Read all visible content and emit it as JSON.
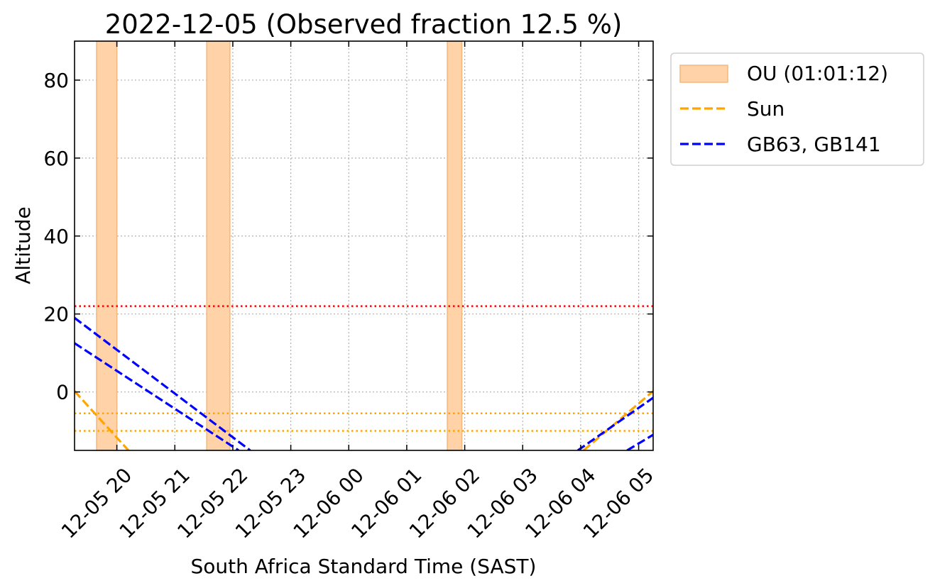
{
  "chart_data": {
    "type": "line",
    "title": "2022-12-05 (Observed fraction 12.5 %)",
    "xlabel": "South Africa Standard Time (SAST)",
    "ylabel": "Altitude",
    "x_range_hours": [
      19.27,
      29.25
    ],
    "ylim": [
      -15,
      90
    ],
    "y_ticks": [
      0,
      20,
      40,
      60,
      80
    ],
    "x_ticks": [
      {
        "h": 20,
        "label": "12-05 20"
      },
      {
        "h": 21,
        "label": "12-05 21"
      },
      {
        "h": 22,
        "label": "12-05 22"
      },
      {
        "h": 23,
        "label": "12-05 23"
      },
      {
        "h": 24,
        "label": "12-06 00"
      },
      {
        "h": 25,
        "label": "12-06 01"
      },
      {
        "h": 26,
        "label": "12-06 02"
      },
      {
        "h": 27,
        "label": "12-06 03"
      },
      {
        "h": 28,
        "label": "12-06 04"
      },
      {
        "h": 29,
        "label": "12-06 05"
      }
    ],
    "grid": true,
    "legend_position": "outside-top-right",
    "observed_windows": {
      "name": "OU (01:01:12)",
      "color": "#ffd2a8",
      "edge_color": "#f5b77a",
      "intervals": [
        [
          19.65,
          20.0
        ],
        [
          21.55,
          21.95
        ],
        [
          25.7,
          25.95
        ]
      ]
    },
    "series": [
      {
        "name": "Sun",
        "color": "#ffa500",
        "points": [
          [
            19.27,
            0.2
          ],
          [
            20.2,
            -15
          ]
        ]
      },
      {
        "name": "Sun",
        "color": "#ffa500",
        "points": [
          [
            28.05,
            -15
          ],
          [
            29.25,
            0.2
          ]
        ]
      },
      {
        "name": "GB63, GB141",
        "color": "#0000ff",
        "points": [
          [
            19.27,
            19
          ],
          [
            22.3,
            -15
          ]
        ]
      },
      {
        "name": "GB63, GB141",
        "color": "#0000ff",
        "points": [
          [
            19.27,
            12.5
          ],
          [
            22.1,
            -15
          ]
        ]
      },
      {
        "name": "GB63, GB141",
        "color": "#0000ff",
        "points": [
          [
            27.95,
            -15
          ],
          [
            29.25,
            -1.5
          ]
        ]
      },
      {
        "name": "GB63, GB141",
        "color": "#0000ff",
        "points": [
          [
            28.8,
            -15
          ],
          [
            29.25,
            -11
          ]
        ]
      }
    ],
    "reference_lines": [
      {
        "y": 22,
        "color": "#ff0000"
      },
      {
        "y": -5.5,
        "color": "#ffa500"
      },
      {
        "y": -10,
        "color": "#ffa500"
      }
    ],
    "legend": [
      {
        "label": "OU (01:01:12)",
        "kind": "patch",
        "color": "#ffd2a8",
        "edge_color": "#f5b77a"
      },
      {
        "label": "Sun",
        "kind": "dashed",
        "color": "#ffa500"
      },
      {
        "label": "GB63, GB141",
        "kind": "dashed",
        "color": "#0000ff"
      }
    ]
  }
}
